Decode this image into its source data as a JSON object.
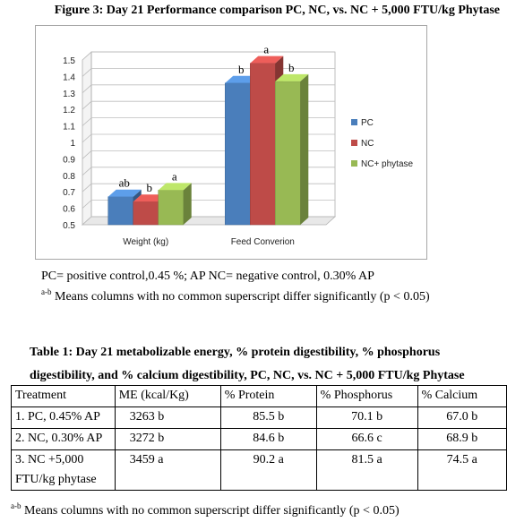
{
  "figure": {
    "title": "Figure 3: Day 21 Performance comparison PC, NC, vs. NC + 5,000 FTU/kg Phytase"
  },
  "chart_data": {
    "type": "bar",
    "categories": [
      "Weight (kg)",
      "Feed Converion"
    ],
    "series": [
      {
        "name": "PC",
        "color": "#4a7ebb",
        "values": [
          0.67,
          1.36
        ],
        "labels": [
          "ab",
          "b"
        ]
      },
      {
        "name": "NC",
        "color": "#be4b48",
        "values": [
          0.64,
          1.48
        ],
        "labels": [
          "b",
          "a"
        ]
      },
      {
        "name": "NC+ phytase",
        "color": "#98b954",
        "values": [
          0.71,
          1.37
        ],
        "labels": [
          "a",
          "b"
        ]
      }
    ],
    "yticks": [
      "0.5",
      "0.6",
      "0.7",
      "0.8",
      "0.9",
      "1",
      "1.1",
      "1.2",
      "1.3",
      "1.4",
      "1.5"
    ],
    "ylim": [
      0.5,
      1.5
    ],
    "grid": true,
    "legend": "right",
    "style": "3d-column"
  },
  "notes": {
    "abbrev": "PC= positive control,0.45 %; AP  NC= negative control, 0.30% AP",
    "sup": "a-b",
    "means": " Means columns with no common superscript differ significantly (p < 0.05)"
  },
  "table": {
    "title": "Table 1: Day 21 metabolizable energy, % protein digestibility, % phosphorus digestibility, and % calcium digestibility, PC, NC, vs. NC + 5,000 FTU/kg Phytase",
    "headers": [
      "Treatment",
      "ME (kcal/Kg)",
      "% Protein",
      "% Phosphorus",
      "% Calcium"
    ],
    "rows": [
      {
        "treatment": "1. PC, 0.45% AP",
        "me": "3263 b",
        "protein": "85.5 b",
        "phosphorus": "70.1 b",
        "calcium": "67.0 b"
      },
      {
        "treatment": "2. NC, 0.30% AP",
        "me": "3272 b",
        "protein": "84.6 b",
        "phosphorus": "66.6 c",
        "calcium": "68.9 b"
      },
      {
        "treatment": "3. NC +5,000",
        "treatment2": "FTU/kg phytase",
        "me": "3459 a",
        "protein": "90.2 a",
        "phosphorus": "81.5 a",
        "calcium": "74.5 a"
      }
    ],
    "footnote_sup": "a-b",
    "footnote": " Means columns with no common superscript differ significantly (p < 0.05)"
  }
}
